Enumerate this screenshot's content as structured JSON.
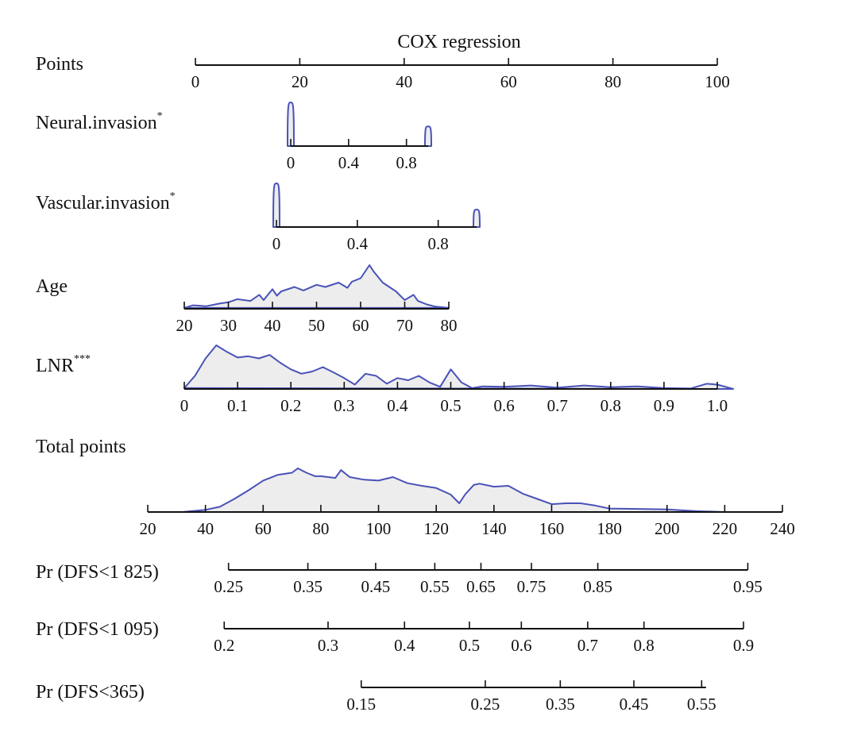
{
  "chart_data": {
    "type": "nomogram",
    "title": "COX regression",
    "colors": {
      "density_fill": "#ededed",
      "density_line": "#4a52b8",
      "axis": "#111111"
    },
    "rows": [
      {
        "label": "Points",
        "sup": "",
        "ticks": [
          "0",
          "20",
          "40",
          "60",
          "80",
          "100"
        ],
        "values": [
          0,
          20,
          40,
          60,
          80,
          100
        ]
      },
      {
        "label": "Neural.invasion",
        "sup": "*",
        "ticks": [
          "0",
          "0.4",
          "0.8"
        ],
        "values": [
          0,
          0.4,
          0.8
        ],
        "density": {
          "type": "binary",
          "heights": [
            1.0,
            0.45
          ]
        }
      },
      {
        "label": "Vascular.invasion",
        "sup": "*",
        "ticks": [
          "0",
          "0.4",
          "0.8"
        ],
        "values": [
          0,
          0.4,
          0.8
        ],
        "density": {
          "type": "binary",
          "heights": [
            1.0,
            0.4
          ]
        }
      },
      {
        "label": "Age",
        "sup": "",
        "ticks": [
          "20",
          "30",
          "40",
          "50",
          "60",
          "70",
          "80"
        ],
        "values": [
          20,
          30,
          40,
          50,
          60,
          70,
          80
        ],
        "density": {
          "type": "curve",
          "x": [
            20,
            22,
            25,
            28,
            30,
            32,
            35,
            37,
            38,
            40,
            41,
            42,
            45,
            47,
            50,
            52,
            55,
            57,
            58,
            60,
            62,
            63,
            65,
            68,
            70,
            72,
            73,
            75,
            77,
            80
          ],
          "y": [
            0.02,
            0.08,
            0.06,
            0.12,
            0.15,
            0.22,
            0.18,
            0.32,
            0.2,
            0.45,
            0.3,
            0.4,
            0.5,
            0.42,
            0.55,
            0.5,
            0.6,
            0.48,
            0.62,
            0.7,
            1.0,
            0.85,
            0.6,
            0.4,
            0.2,
            0.32,
            0.18,
            0.1,
            0.05,
            0.02
          ]
        }
      },
      {
        "label": "LNR",
        "sup": "***",
        "ticks": [
          "0",
          "0.1",
          "0.2",
          "0.3",
          "0.4",
          "0.5",
          "0.6",
          "0.7",
          "0.8",
          "0.9",
          "1.0"
        ],
        "values": [
          0,
          0.1,
          0.2,
          0.3,
          0.4,
          0.5,
          0.6,
          0.7,
          0.8,
          0.9,
          1.0
        ],
        "density": {
          "type": "curve",
          "x": [
            0,
            0.02,
            0.04,
            0.06,
            0.08,
            0.1,
            0.12,
            0.14,
            0.16,
            0.18,
            0.2,
            0.22,
            0.24,
            0.26,
            0.28,
            0.3,
            0.32,
            0.34,
            0.36,
            0.38,
            0.4,
            0.42,
            0.44,
            0.46,
            0.48,
            0.5,
            0.52,
            0.54,
            0.56,
            0.6,
            0.65,
            0.7,
            0.75,
            0.8,
            0.85,
            0.9,
            0.95,
            0.98,
            1.0,
            1.03
          ],
          "y": [
            0.02,
            0.3,
            0.7,
            1.0,
            0.85,
            0.72,
            0.75,
            0.7,
            0.78,
            0.6,
            0.45,
            0.35,
            0.4,
            0.5,
            0.38,
            0.25,
            0.1,
            0.35,
            0.3,
            0.12,
            0.25,
            0.2,
            0.3,
            0.15,
            0.05,
            0.45,
            0.15,
            0.02,
            0.06,
            0.05,
            0.08,
            0.03,
            0.08,
            0.04,
            0.06,
            0.02,
            0.01,
            0.12,
            0.1,
            0.0
          ]
        }
      },
      {
        "label": "Total points",
        "sup": "",
        "ticks": [
          "20",
          "40",
          "60",
          "80",
          "100",
          "120",
          "140",
          "160",
          "180",
          "200",
          "220",
          "240"
        ],
        "values": [
          20,
          40,
          60,
          80,
          100,
          120,
          140,
          160,
          180,
          200,
          220,
          240
        ],
        "density": {
          "type": "curve",
          "x": [
            32,
            40,
            45,
            50,
            55,
            60,
            65,
            70,
            72,
            75,
            78,
            80,
            85,
            87,
            90,
            95,
            100,
            105,
            110,
            115,
            120,
            125,
            128,
            130,
            133,
            135,
            140,
            145,
            150,
            155,
            160,
            165,
            170,
            175,
            180,
            190,
            200,
            210,
            220
          ],
          "y": [
            0.0,
            0.05,
            0.12,
            0.3,
            0.5,
            0.72,
            0.85,
            0.9,
            1.0,
            0.9,
            0.82,
            0.82,
            0.78,
            0.96,
            0.8,
            0.74,
            0.72,
            0.8,
            0.66,
            0.6,
            0.55,
            0.4,
            0.2,
            0.4,
            0.62,
            0.65,
            0.58,
            0.6,
            0.42,
            0.3,
            0.18,
            0.2,
            0.2,
            0.15,
            0.08,
            0.07,
            0.06,
            0.02,
            0.0
          ]
        }
      },
      {
        "label": "Pr (DFS<1 825)",
        "sup": "",
        "ticks": [
          "0.25",
          "0.35",
          "0.45",
          "0.55",
          "0.65",
          "0.75",
          "0.85",
          "0.95"
        ],
        "values": [
          0.25,
          0.35,
          0.45,
          0.55,
          0.65,
          0.75,
          0.85,
          0.95
        ],
        "axis_range_total_points": [
          48,
          228
        ],
        "tick_total_points": [
          48,
          75.5,
          99,
          119.5,
          135.5,
          153,
          176,
          228
        ]
      },
      {
        "label": "Pr (DFS<1 095)",
        "sup": "",
        "ticks": [
          "0.2",
          "0.3",
          "0.4",
          "0.5",
          "0.6",
          "0.7",
          "0.8",
          "0.9"
        ],
        "values": [
          0.2,
          0.3,
          0.4,
          0.5,
          0.6,
          0.7,
          0.8,
          0.9
        ],
        "axis_range_total_points": [
          46.5,
          226.5
        ],
        "tick_total_points": [
          46.5,
          82.5,
          109,
          131.5,
          149.5,
          172.5,
          192,
          226.5
        ]
      },
      {
        "label": "Pr (DFS<365)",
        "sup": "",
        "ticks": [
          "0.15",
          "0.25",
          "0.35",
          "0.45",
          "0.55"
        ],
        "values": [
          0.15,
          0.25,
          0.35,
          0.45,
          0.55
        ],
        "axis_range_total_points": [
          94,
          213.5
        ],
        "tick_total_points": [
          94,
          137,
          163,
          188.5,
          212
        ]
      }
    ]
  }
}
